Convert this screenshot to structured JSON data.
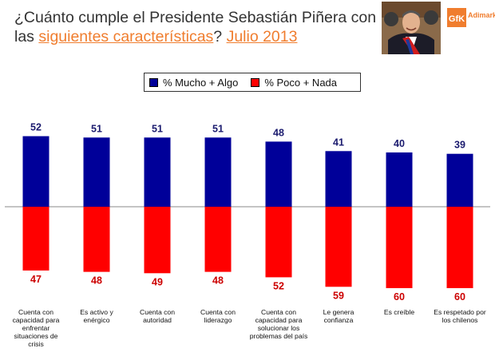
{
  "header": {
    "title_part1": "¿Cuánto cumple el Presidente Sebastián Piñera con las ",
    "title_highlight": "siguientes características",
    "title_part2": "? ",
    "title_date": "Julio 2013"
  },
  "logo": {
    "text": "GfK",
    "subtext": "Adimark",
    "color": "#f07d2e"
  },
  "colors": {
    "positive": "#000099",
    "negative": "#ff0000",
    "pos_label": "#1a1a6e",
    "neg_label": "#cc0000"
  },
  "chart_data": {
    "type": "bar",
    "title": "¿Cuánto cumple el Presidente Sebastián Piñera con las siguientes características? Julio 2013",
    "categories": [
      "Cuenta con capacidad para enfrentar situaciones de crisis",
      "Es activo y enérgico",
      "Cuenta con autoridad",
      "Cuenta con liderazgo",
      "Cuenta con capacidad para solucionar los problemas del país",
      "Le genera confianza",
      "Es creíble",
      "Es respetado por los chilenos"
    ],
    "series": [
      {
        "name": "% Mucho + Algo",
        "values": [
          52,
          51,
          51,
          51,
          48,
          41,
          40,
          39
        ]
      },
      {
        "name": "% Poco + Nada",
        "values": [
          47,
          48,
          49,
          48,
          52,
          59,
          60,
          60
        ]
      }
    ],
    "legend": "top-center",
    "xlabel": "",
    "ylabel": "",
    "grid": false
  }
}
